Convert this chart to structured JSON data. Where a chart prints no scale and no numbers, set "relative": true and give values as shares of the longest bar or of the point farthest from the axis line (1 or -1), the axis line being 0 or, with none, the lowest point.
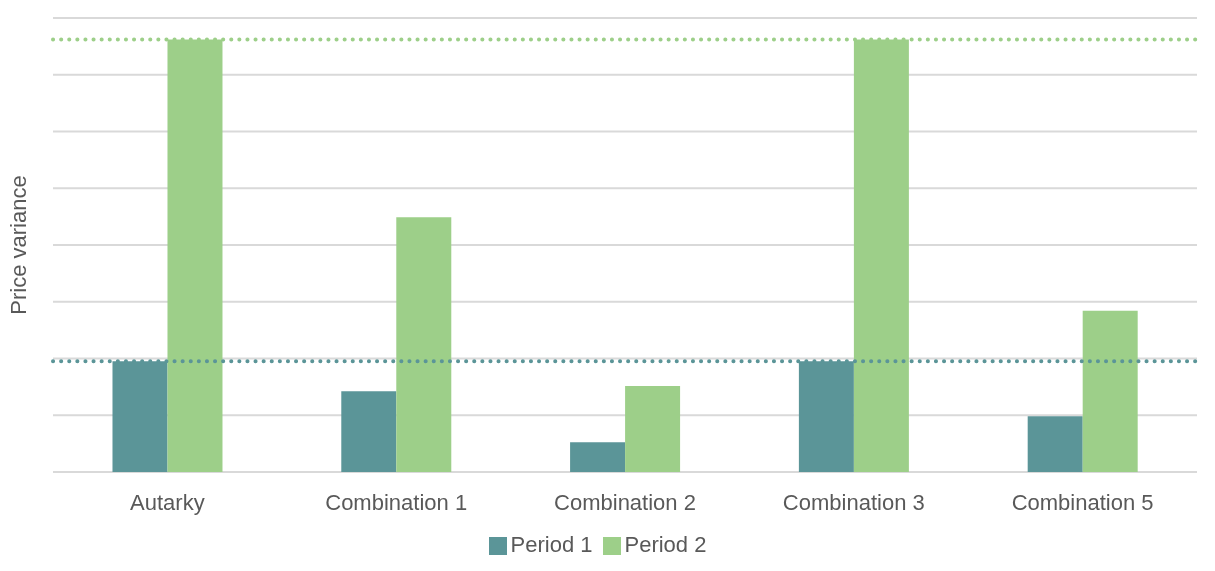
{
  "chart_data": {
    "type": "bar",
    "relative": true,
    "ylabel": "Price variance",
    "categories": [
      "Autarky",
      "Combination 1",
      "Combination 2",
      "Combination 3",
      "Combination 5"
    ],
    "series": [
      {
        "name": "Period 1",
        "color": "#5b9598",
        "values": [
          0.256,
          0.187,
          0.069,
          0.256,
          0.129
        ]
      },
      {
        "name": "Period 2",
        "color": "#9dcf89",
        "values": [
          1,
          0.589,
          0.199,
          1,
          0.373
        ]
      }
    ],
    "ref_lines": [
      {
        "axis": "y",
        "value": 1,
        "color": "#9dcf89",
        "line_style": "dotted"
      },
      {
        "axis": "y",
        "value": 0.256,
        "color": "#5b9598",
        "line_style": "dotted"
      }
    ],
    "grid": "y",
    "legend": "bottom"
  }
}
